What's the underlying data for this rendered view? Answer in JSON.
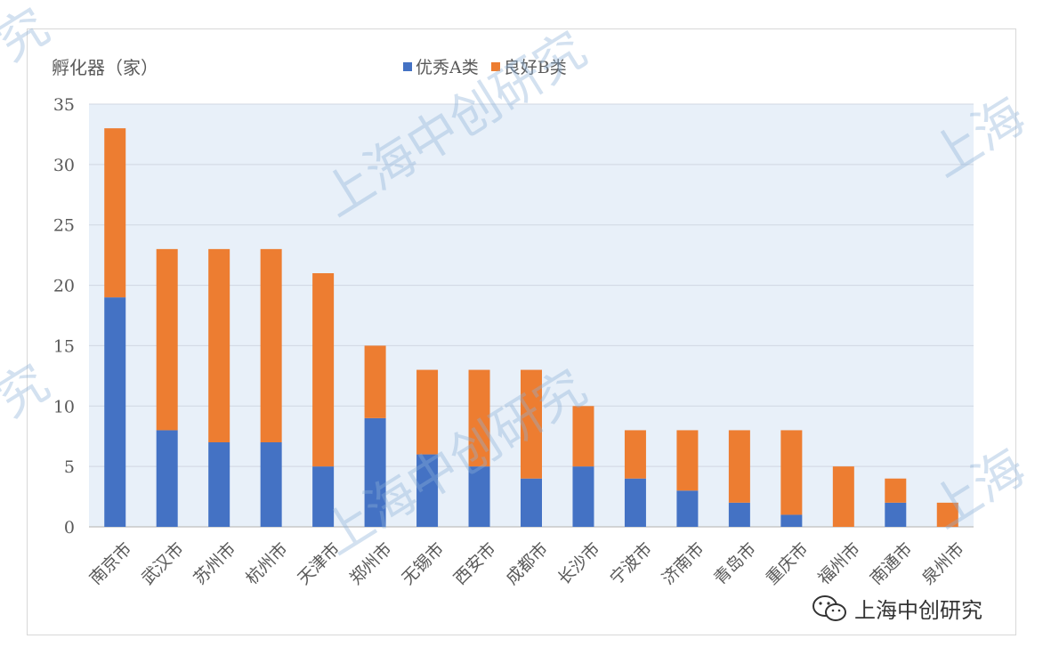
{
  "chart_data": {
    "type": "bar",
    "stacked": true,
    "ylabel": "孵化器（家）",
    "ylim": [
      0,
      35
    ],
    "yticks": [
      0,
      5,
      10,
      15,
      20,
      25,
      30,
      35
    ],
    "grid": true,
    "legend_position": "top-center",
    "categories": [
      "南京市",
      "武汉市",
      "苏州市",
      "杭州市",
      "天津市",
      "郑州市",
      "无锡市",
      "西安市",
      "成都市",
      "长沙市",
      "宁波市",
      "济南市",
      "青岛市",
      "重庆市",
      "福州市",
      "南通市",
      "泉州市"
    ],
    "series": [
      {
        "name": "优秀A类",
        "color": "#4472c4",
        "values": [
          19,
          8,
          7,
          7,
          5,
          9,
          6,
          5,
          4,
          5,
          4,
          3,
          2,
          1,
          0,
          2,
          0
        ]
      },
      {
        "name": "良好B类",
        "color": "#ed7d31",
        "values": [
          14,
          15,
          16,
          16,
          16,
          6,
          7,
          8,
          9,
          5,
          4,
          5,
          6,
          7,
          5,
          2,
          2
        ]
      }
    ]
  },
  "watermark": {
    "text": "上海中创研究",
    "tail": "上海",
    "fragment": "究"
  },
  "brand": {
    "text": "上海中创研究",
    "icon": "wechat-icon"
  },
  "colors": {
    "gridline": "#d0d7e2",
    "axis_text": "#595959",
    "plot_background": "#e8f0f9"
  }
}
